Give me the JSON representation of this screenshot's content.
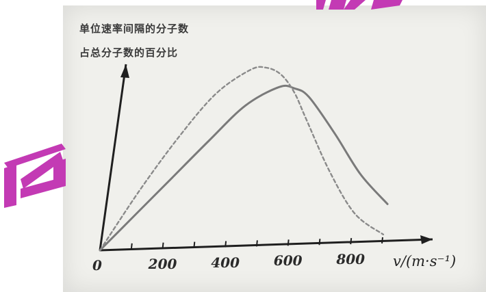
{
  "chart_data": {
    "type": "line",
    "ylabel_line1": "单位速率间隔的分子数",
    "ylabel_line2": "占总分子数的百分比",
    "xlabel": "v/(m·s⁻¹)",
    "origin_label": "0",
    "x_ticks": [
      200,
      400,
      600,
      800
    ],
    "x_minor_ticks": [
      100,
      300,
      500,
      700
    ],
    "xlim": [
      0,
      900
    ],
    "series": [
      {
        "style": "solid",
        "color": "#7a7a7a",
        "x": [
          0,
          100,
          200,
          300,
          400,
          500,
          550,
          600,
          700,
          800,
          900
        ],
        "y": [
          0,
          0.2,
          0.4,
          0.6,
          0.79,
          0.89,
          0.88,
          0.83,
          0.62,
          0.39,
          0.22
        ]
      },
      {
        "style": "dashed",
        "color": "#8a8a8a",
        "x": [
          0,
          100,
          200,
          300,
          400,
          450,
          500,
          550,
          600,
          700,
          800,
          900
        ],
        "y": [
          0,
          0.33,
          0.62,
          0.86,
          0.99,
          1.0,
          0.96,
          0.86,
          0.71,
          0.41,
          0.17,
          0.05
        ]
      }
    ],
    "grid": false,
    "legend": "none"
  },
  "watermark": {
    "color": "#c33ab4",
    "text": "IN"
  }
}
